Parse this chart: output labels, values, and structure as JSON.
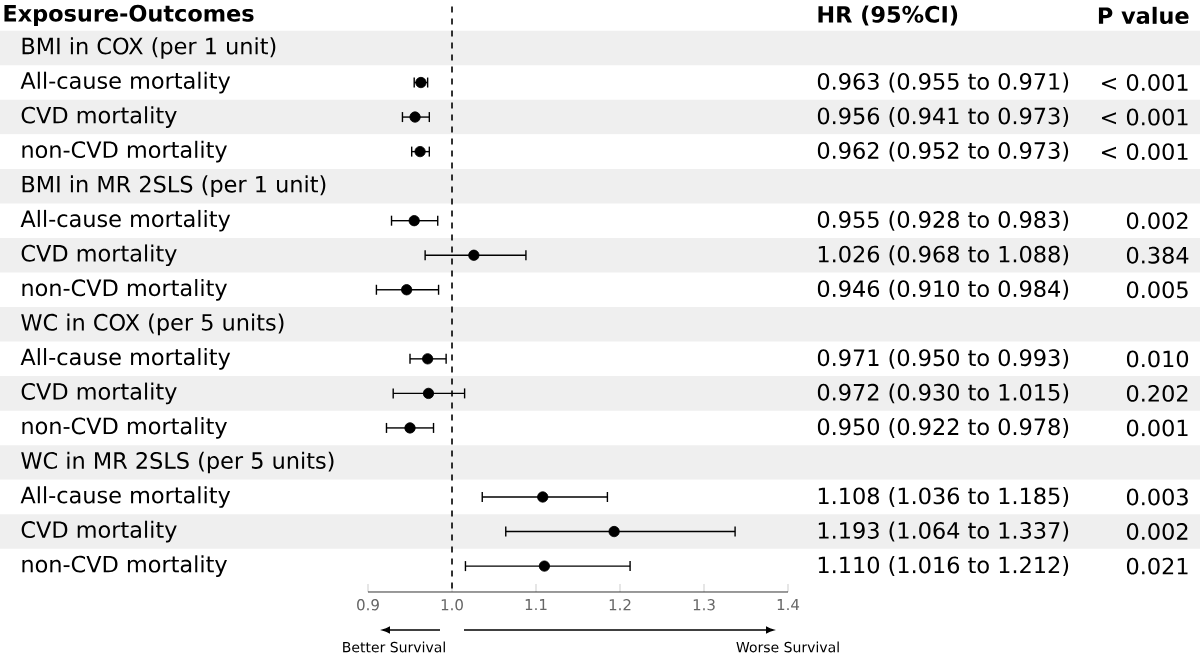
{
  "chart_data": {
    "type": "scatter",
    "orientation": "horizontal",
    "title": "Exposure-Outcomes",
    "categories": [
      "BMI in COX (per 1 unit)",
      "All-cause mortality",
      "CVD mortality",
      "non-CVD mortality",
      "BMI in MR 2SLS (per 1 unit)",
      "All-cause mortality",
      "CVD mortality",
      "non-CVD mortality",
      "WC in COX (per 5 units)",
      "All-cause mortality",
      "CVD mortality",
      "non-CVD mortality",
      "WC in MR 2SLS (per 5 units)",
      "All-cause mortality",
      "CVD mortality",
      "non-CVD mortality"
    ],
    "values": [
      null,
      0.963,
      0.956,
      0.962,
      null,
      0.955,
      1.026,
      0.946,
      null,
      0.971,
      0.972,
      0.95,
      null,
      1.108,
      1.193,
      1.11
    ],
    "errors": [
      null,
      [
        0.955,
        0.971
      ],
      [
        0.941,
        0.973
      ],
      [
        0.952,
        0.973
      ],
      null,
      [
        0.928,
        0.983
      ],
      [
        0.968,
        1.088
      ],
      [
        0.91,
        0.984
      ],
      null,
      [
        0.95,
        0.993
      ],
      [
        0.93,
        1.015
      ],
      [
        0.922,
        0.978
      ],
      null,
      [
        1.036,
        1.185
      ],
      [
        1.064,
        1.337
      ],
      [
        1.016,
        1.212
      ]
    ],
    "value_labels": [
      null,
      "0.963 (0.955 to 0.971)",
      "0.956 (0.941 to 0.973)",
      "0.962 (0.952 to 0.973)",
      null,
      "0.955 (0.928 to 0.983)",
      "1.026 (0.968 to 1.088)",
      "0.946 (0.910 to 0.984)",
      null,
      "0.971 (0.950 to 0.993)",
      "0.972 (0.930 to 1.015)",
      "0.950 (0.922 to 0.978)",
      null,
      "1.108 (1.036 to 1.185)",
      "1.193 (1.064 to 1.337)",
      "1.110 (1.016 to 1.212)"
    ],
    "annotations": [
      "HR (95%CI)",
      "P value",
      "< 0.001",
      "< 0.001",
      "< 0.001",
      "0.002",
      "0.384",
      "0.005",
      "0.010",
      "0.202",
      "0.001",
      "0.003",
      "0.002",
      "0.021",
      "Better Survival",
      "Worse Survival"
    ],
    "color": "#000000",
    "xlim": [
      0.9,
      1.4
    ],
    "xticks": [
      0.9,
      {
        "value": 1,
        "label": "1.0"
      },
      1.1,
      1.2,
      1.3,
      1.4
    ],
    "ref_lines": [
      {
        "axis": "x",
        "value": 1,
        "line_style": "dashed"
      }
    ],
    "legend": false,
    "grid": false
  }
}
